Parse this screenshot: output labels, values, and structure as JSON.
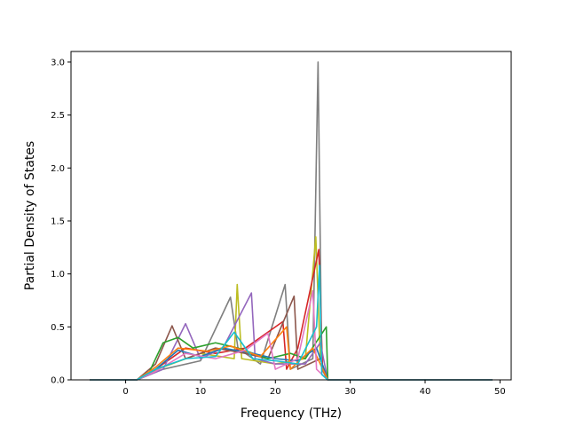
{
  "chart_data": {
    "type": "line",
    "title": "",
    "xlabel": "Frequency (THz)",
    "ylabel": "Partial Density of States",
    "xlim": [
      -7.3,
      51.5
    ],
    "ylim": [
      0.0,
      3.1
    ],
    "xticks": [
      0,
      10,
      20,
      30,
      40,
      50
    ],
    "yticks": [
      0.0,
      0.5,
      1.0,
      1.5,
      2.0,
      2.5,
      3.0
    ],
    "xtick_labels": [
      "0",
      "10",
      "20",
      "30",
      "40",
      "50"
    ],
    "ytick_labels": [
      "0.0",
      "0.5",
      "1.0",
      "1.5",
      "2.0",
      "2.5",
      "3.0"
    ],
    "grid": false,
    "legend": false,
    "data_range_x": [
      -4.8,
      49.0
    ],
    "series": [
      {
        "color": "#7f7f7f",
        "values": [
          [
            -4.8,
            0
          ],
          [
            1.5,
            0
          ],
          [
            5,
            0.1
          ],
          [
            10,
            0.18
          ],
          [
            14,
            0.78
          ],
          [
            15,
            0.3
          ],
          [
            18,
            0.15
          ],
          [
            21.3,
            0.9
          ],
          [
            22,
            0.1
          ],
          [
            25,
            0.2
          ],
          [
            25.7,
            3.0
          ],
          [
            26.2,
            0.1
          ],
          [
            27,
            0
          ],
          [
            49,
            0
          ]
        ]
      },
      {
        "color": "#bcbd22",
        "values": [
          [
            -4.8,
            0
          ],
          [
            1.5,
            0
          ],
          [
            5,
            0.12
          ],
          [
            10,
            0.25
          ],
          [
            14.5,
            0.2
          ],
          [
            14.9,
            0.9
          ],
          [
            15.5,
            0.2
          ],
          [
            20,
            0.15
          ],
          [
            24,
            0.2
          ],
          [
            25.4,
            1.35
          ],
          [
            26,
            0.2
          ],
          [
            27,
            0
          ],
          [
            49,
            0
          ]
        ]
      },
      {
        "color": "#d62728",
        "values": [
          [
            -4.8,
            0
          ],
          [
            1.5,
            0
          ],
          [
            4,
            0.1
          ],
          [
            8,
            0.3
          ],
          [
            12,
            0.25
          ],
          [
            16,
            0.3
          ],
          [
            21,
            0.55
          ],
          [
            21.5,
            0.1
          ],
          [
            23,
            0.3
          ],
          [
            25.8,
            1.23
          ],
          [
            26.3,
            0.1
          ],
          [
            27,
            0
          ],
          [
            49,
            0
          ]
        ]
      },
      {
        "color": "#9467bd",
        "values": [
          [
            -4.8,
            0
          ],
          [
            1.5,
            0
          ],
          [
            5,
            0.1
          ],
          [
            8,
            0.53
          ],
          [
            10,
            0.2
          ],
          [
            13,
            0.3
          ],
          [
            16.8,
            0.82
          ],
          [
            17.3,
            0.2
          ],
          [
            20,
            0.15
          ],
          [
            24,
            0.15
          ],
          [
            26,
            0.35
          ],
          [
            27,
            0
          ],
          [
            49,
            0
          ]
        ]
      },
      {
        "color": "#8c564b",
        "values": [
          [
            -4.8,
            0
          ],
          [
            1.5,
            0
          ],
          [
            4,
            0.15
          ],
          [
            6.2,
            0.51
          ],
          [
            8,
            0.2
          ],
          [
            12,
            0.3
          ],
          [
            16,
            0.25
          ],
          [
            19,
            0.2
          ],
          [
            22.5,
            0.79
          ],
          [
            23,
            0.1
          ],
          [
            26,
            0.2
          ],
          [
            27,
            0
          ],
          [
            49,
            0
          ]
        ]
      },
      {
        "color": "#2ca02c",
        "values": [
          [
            -4.8,
            0
          ],
          [
            1.5,
            0
          ],
          [
            3,
            0.05
          ],
          [
            5,
            0.35
          ],
          [
            7,
            0.4
          ],
          [
            9,
            0.3
          ],
          [
            12,
            0.35
          ],
          [
            15,
            0.3
          ],
          [
            19,
            0.2
          ],
          [
            22,
            0.25
          ],
          [
            24,
            0.2
          ],
          [
            26.8,
            0.5
          ],
          [
            27,
            0
          ],
          [
            49,
            0
          ]
        ]
      },
      {
        "color": "#1f77b4",
        "values": [
          [
            -4.8,
            0
          ],
          [
            1.5,
            0
          ],
          [
            4,
            0.1
          ],
          [
            7,
            0.28
          ],
          [
            10,
            0.22
          ],
          [
            13,
            0.3
          ],
          [
            17,
            0.25
          ],
          [
            20,
            0.2
          ],
          [
            23,
            0.18
          ],
          [
            25.5,
            0.3
          ],
          [
            27,
            0
          ],
          [
            49,
            0
          ]
        ]
      },
      {
        "color": "#ff7f0e",
        "values": [
          [
            -4.8,
            0
          ],
          [
            1.5,
            0
          ],
          [
            4,
            0.12
          ],
          [
            7,
            0.3
          ],
          [
            11,
            0.27
          ],
          [
            14,
            0.32
          ],
          [
            18,
            0.22
          ],
          [
            21.5,
            0.5
          ],
          [
            22,
            0.1
          ],
          [
            25,
            0.3
          ],
          [
            27,
            0
          ],
          [
            49,
            0
          ]
        ]
      },
      {
        "color": "#e377c2",
        "values": [
          [
            -4.8,
            0
          ],
          [
            1.5,
            0
          ],
          [
            4,
            0.08
          ],
          [
            8,
            0.25
          ],
          [
            12,
            0.2
          ],
          [
            16,
            0.28
          ],
          [
            19,
            0.44
          ],
          [
            20,
            0.1
          ],
          [
            23,
            0.2
          ],
          [
            25,
            0.84
          ],
          [
            25.5,
            0.1
          ],
          [
            27,
            0
          ],
          [
            49,
            0
          ]
        ]
      },
      {
        "color": "#17becf",
        "values": [
          [
            -4.8,
            0
          ],
          [
            1.5,
            0
          ],
          [
            4,
            0.1
          ],
          [
            8,
            0.2
          ],
          [
            12,
            0.22
          ],
          [
            14.5,
            0.45
          ],
          [
            17,
            0.2
          ],
          [
            20,
            0.18
          ],
          [
            23,
            0.15
          ],
          [
            25.5,
            0.5
          ],
          [
            25.9,
            1.08
          ],
          [
            26.2,
            0.05
          ],
          [
            27,
            0
          ],
          [
            27.5,
            0
          ],
          [
            49,
            0
          ]
        ]
      }
    ]
  }
}
